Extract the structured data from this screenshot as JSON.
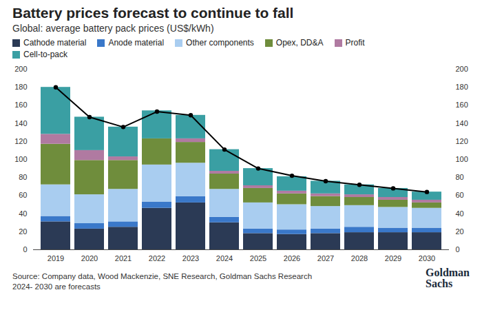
{
  "chart_data": {
    "type": "bar",
    "title": "Battery prices forecast to continue to fall",
    "subtitle": "Global: average battery pack prices (US$/kWh)",
    "source": "Source: Company data, Wood Mackenzie, SNE Research, Goldman Sachs Research",
    "note": "2024- 2030 are forecasts",
    "logo": [
      "Goldman",
      "Sachs"
    ],
    "stacked": true,
    "grid": false,
    "categories": [
      "2019",
      "2020",
      "2021",
      "2022",
      "2023",
      "2024",
      "2025",
      "2026",
      "2027",
      "2028",
      "2029",
      "2030"
    ],
    "ylim": [
      0,
      200
    ],
    "yticks": [
      0,
      20,
      40,
      60,
      80,
      100,
      120,
      140,
      160,
      180,
      200
    ],
    "y2lim": [
      0,
      200
    ],
    "y2ticks": [
      0,
      20,
      40,
      60,
      80,
      100,
      120,
      140,
      160,
      180,
      200
    ],
    "series": [
      {
        "name": "Cathode material",
        "type": "bar",
        "color": "#2b3a55",
        "values": [
          31,
          23,
          25,
          46,
          52,
          30,
          18,
          17,
          18,
          19,
          19,
          19
        ]
      },
      {
        "name": "Anode material",
        "type": "bar",
        "color": "#3a78c9",
        "values": [
          6,
          6,
          6,
          7,
          7,
          6,
          5,
          5,
          5,
          6,
          5,
          5
        ]
      },
      {
        "name": "Other components",
        "type": "bar",
        "color": "#a9cdf0",
        "values": [
          35,
          32,
          36,
          41,
          37,
          31,
          29,
          28,
          25,
          24,
          23,
          22
        ]
      },
      {
        "name": "Opex, DD&A",
        "type": "bar",
        "color": "#6f8d3c",
        "values": [
          45,
          38,
          32,
          29,
          23,
          17,
          16,
          12,
          11,
          9,
          8,
          6
        ]
      },
      {
        "name": "Profit",
        "type": "bar",
        "color": "#b07aa1",
        "values": [
          11,
          11,
          4,
          0,
          4,
          3,
          3,
          3,
          3,
          3,
          3,
          3
        ]
      },
      {
        "name": "Cell-to-pack",
        "type": "bar",
        "color": "#3a9fa3",
        "values": [
          52,
          37,
          33,
          31,
          26,
          24,
          19,
          16,
          14,
          11,
          10,
          9
        ]
      },
      {
        "type": "line",
        "axis": "y2",
        "color": "#000000",
        "marker": "circle",
        "values": [
          180,
          147,
          136,
          153,
          149,
          111,
          90,
          82,
          76,
          72,
          68,
          64
        ]
      }
    ]
  }
}
